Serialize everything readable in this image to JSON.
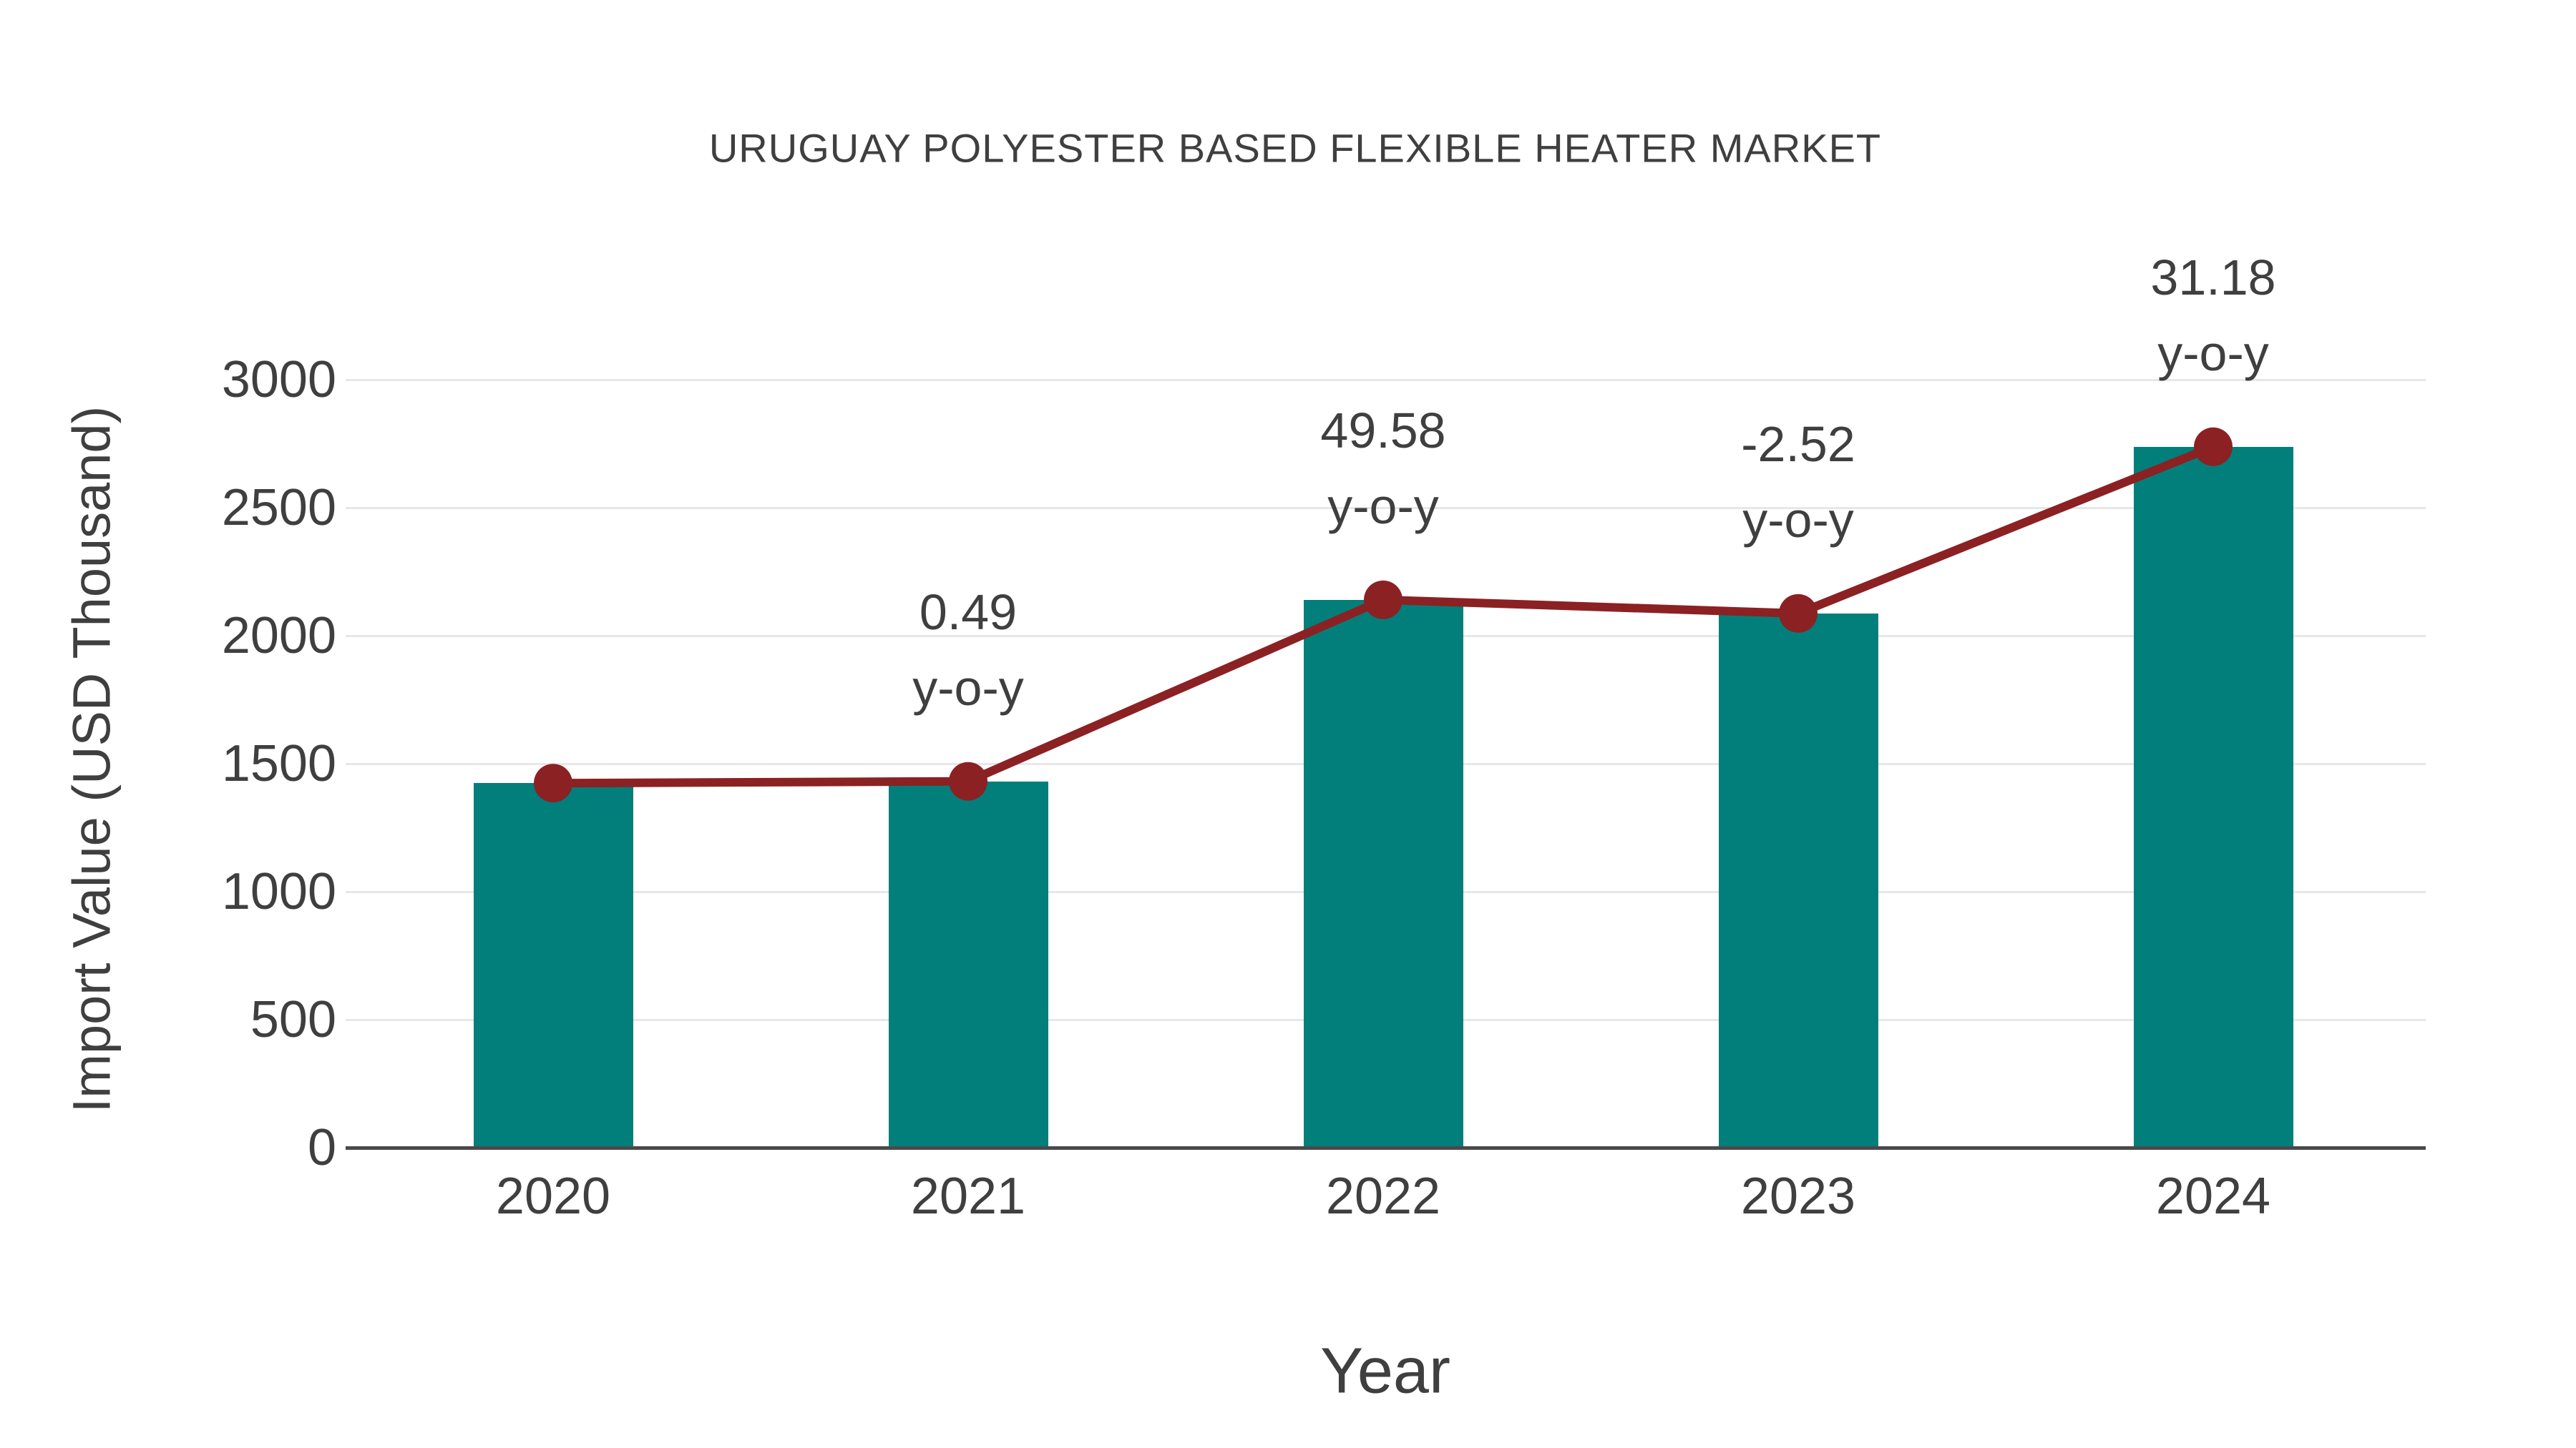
{
  "chart_data": {
    "type": "bar",
    "title": "URUGUAY POLYESTER BASED FLEXIBLE HEATER MARKET",
    "xlabel": "Year",
    "ylabel": "Import Value (USD Thousand)",
    "categories": [
      "2020",
      "2021",
      "2022",
      "2023",
      "2024"
    ],
    "series": [
      {
        "name": "import-value-bars",
        "type": "bar",
        "values": [
          1424,
          1431,
          2140,
          2087,
          2738
        ]
      },
      {
        "name": "import-value-trend-line",
        "type": "line",
        "values": [
          1424,
          1431,
          2140,
          2087,
          2738
        ]
      }
    ],
    "annotations": [
      {
        "category": "2021",
        "value_label": "0.49",
        "suffix_label": "y-o-y"
      },
      {
        "category": "2022",
        "value_label": "49.58",
        "suffix_label": "y-o-y"
      },
      {
        "category": "2023",
        "value_label": "-2.52",
        "suffix_label": "y-o-y"
      },
      {
        "category": "2024",
        "value_label": "31.18",
        "suffix_label": "y-o-y"
      }
    ],
    "ytick_labels": [
      "0",
      "500",
      "1000",
      "1500",
      "2000",
      "2500",
      "3000"
    ],
    "ytick_values": [
      0,
      500,
      1000,
      1500,
      2000,
      2500,
      3000
    ],
    "ylim": [
      0,
      3000
    ],
    "grid": "horizontal",
    "legend": "none",
    "colors": {
      "bar": "#027f7b",
      "line": "#8b2123",
      "marker": "#8b2123",
      "text": "#3f3f3f",
      "gridline": "#e7e7e7",
      "axis_line": "#4a4a4a",
      "background": "#ffffff"
    }
  }
}
